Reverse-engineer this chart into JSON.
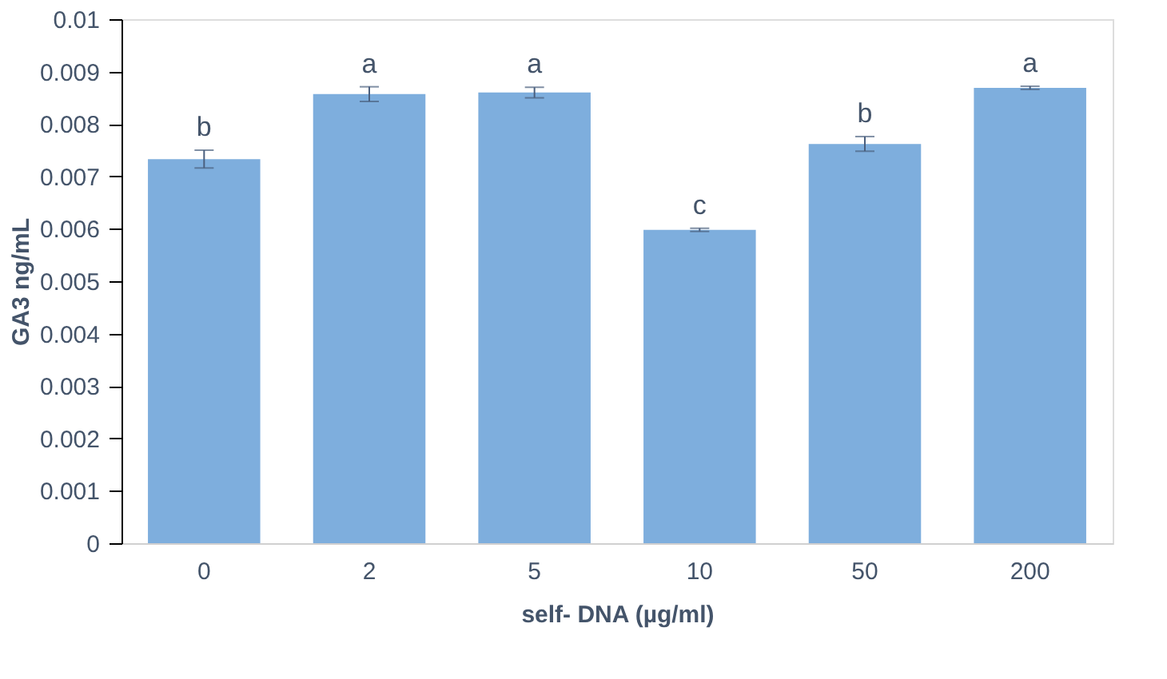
{
  "chart_data": {
    "type": "bar",
    "xlabel": "self- DNA (µg/ml)",
    "ylabel": "GA3 ng/mL",
    "categories": [
      "0",
      "2",
      "5",
      "10",
      "50",
      "200"
    ],
    "values": [
      0.00733,
      0.00857,
      0.0086,
      0.00598,
      0.00762,
      0.00869
    ],
    "errors": [
      0.00017,
      0.00014,
      0.0001,
      3e-05,
      0.00014,
      3e-05
    ],
    "color": "#7eaedd",
    "ylim": [
      0,
      0.01
    ],
    "yticks": [
      0,
      0.001,
      0.002,
      0.003,
      0.004,
      0.005,
      0.006,
      0.007,
      0.008,
      0.009,
      0.01
    ],
    "grid": false,
    "annotations": [
      {
        "text": "b",
        "x": "0",
        "y": 0.0075
      },
      {
        "text": "a",
        "x": "2",
        "y": 0.00871
      },
      {
        "text": "a",
        "x": "5",
        "y": 0.0087
      },
      {
        "text": "c",
        "x": "10",
        "y": 0.00601
      },
      {
        "text": "b",
        "x": "50",
        "y": 0.00776
      },
      {
        "text": "a",
        "x": "200",
        "y": 0.00872
      }
    ]
  }
}
